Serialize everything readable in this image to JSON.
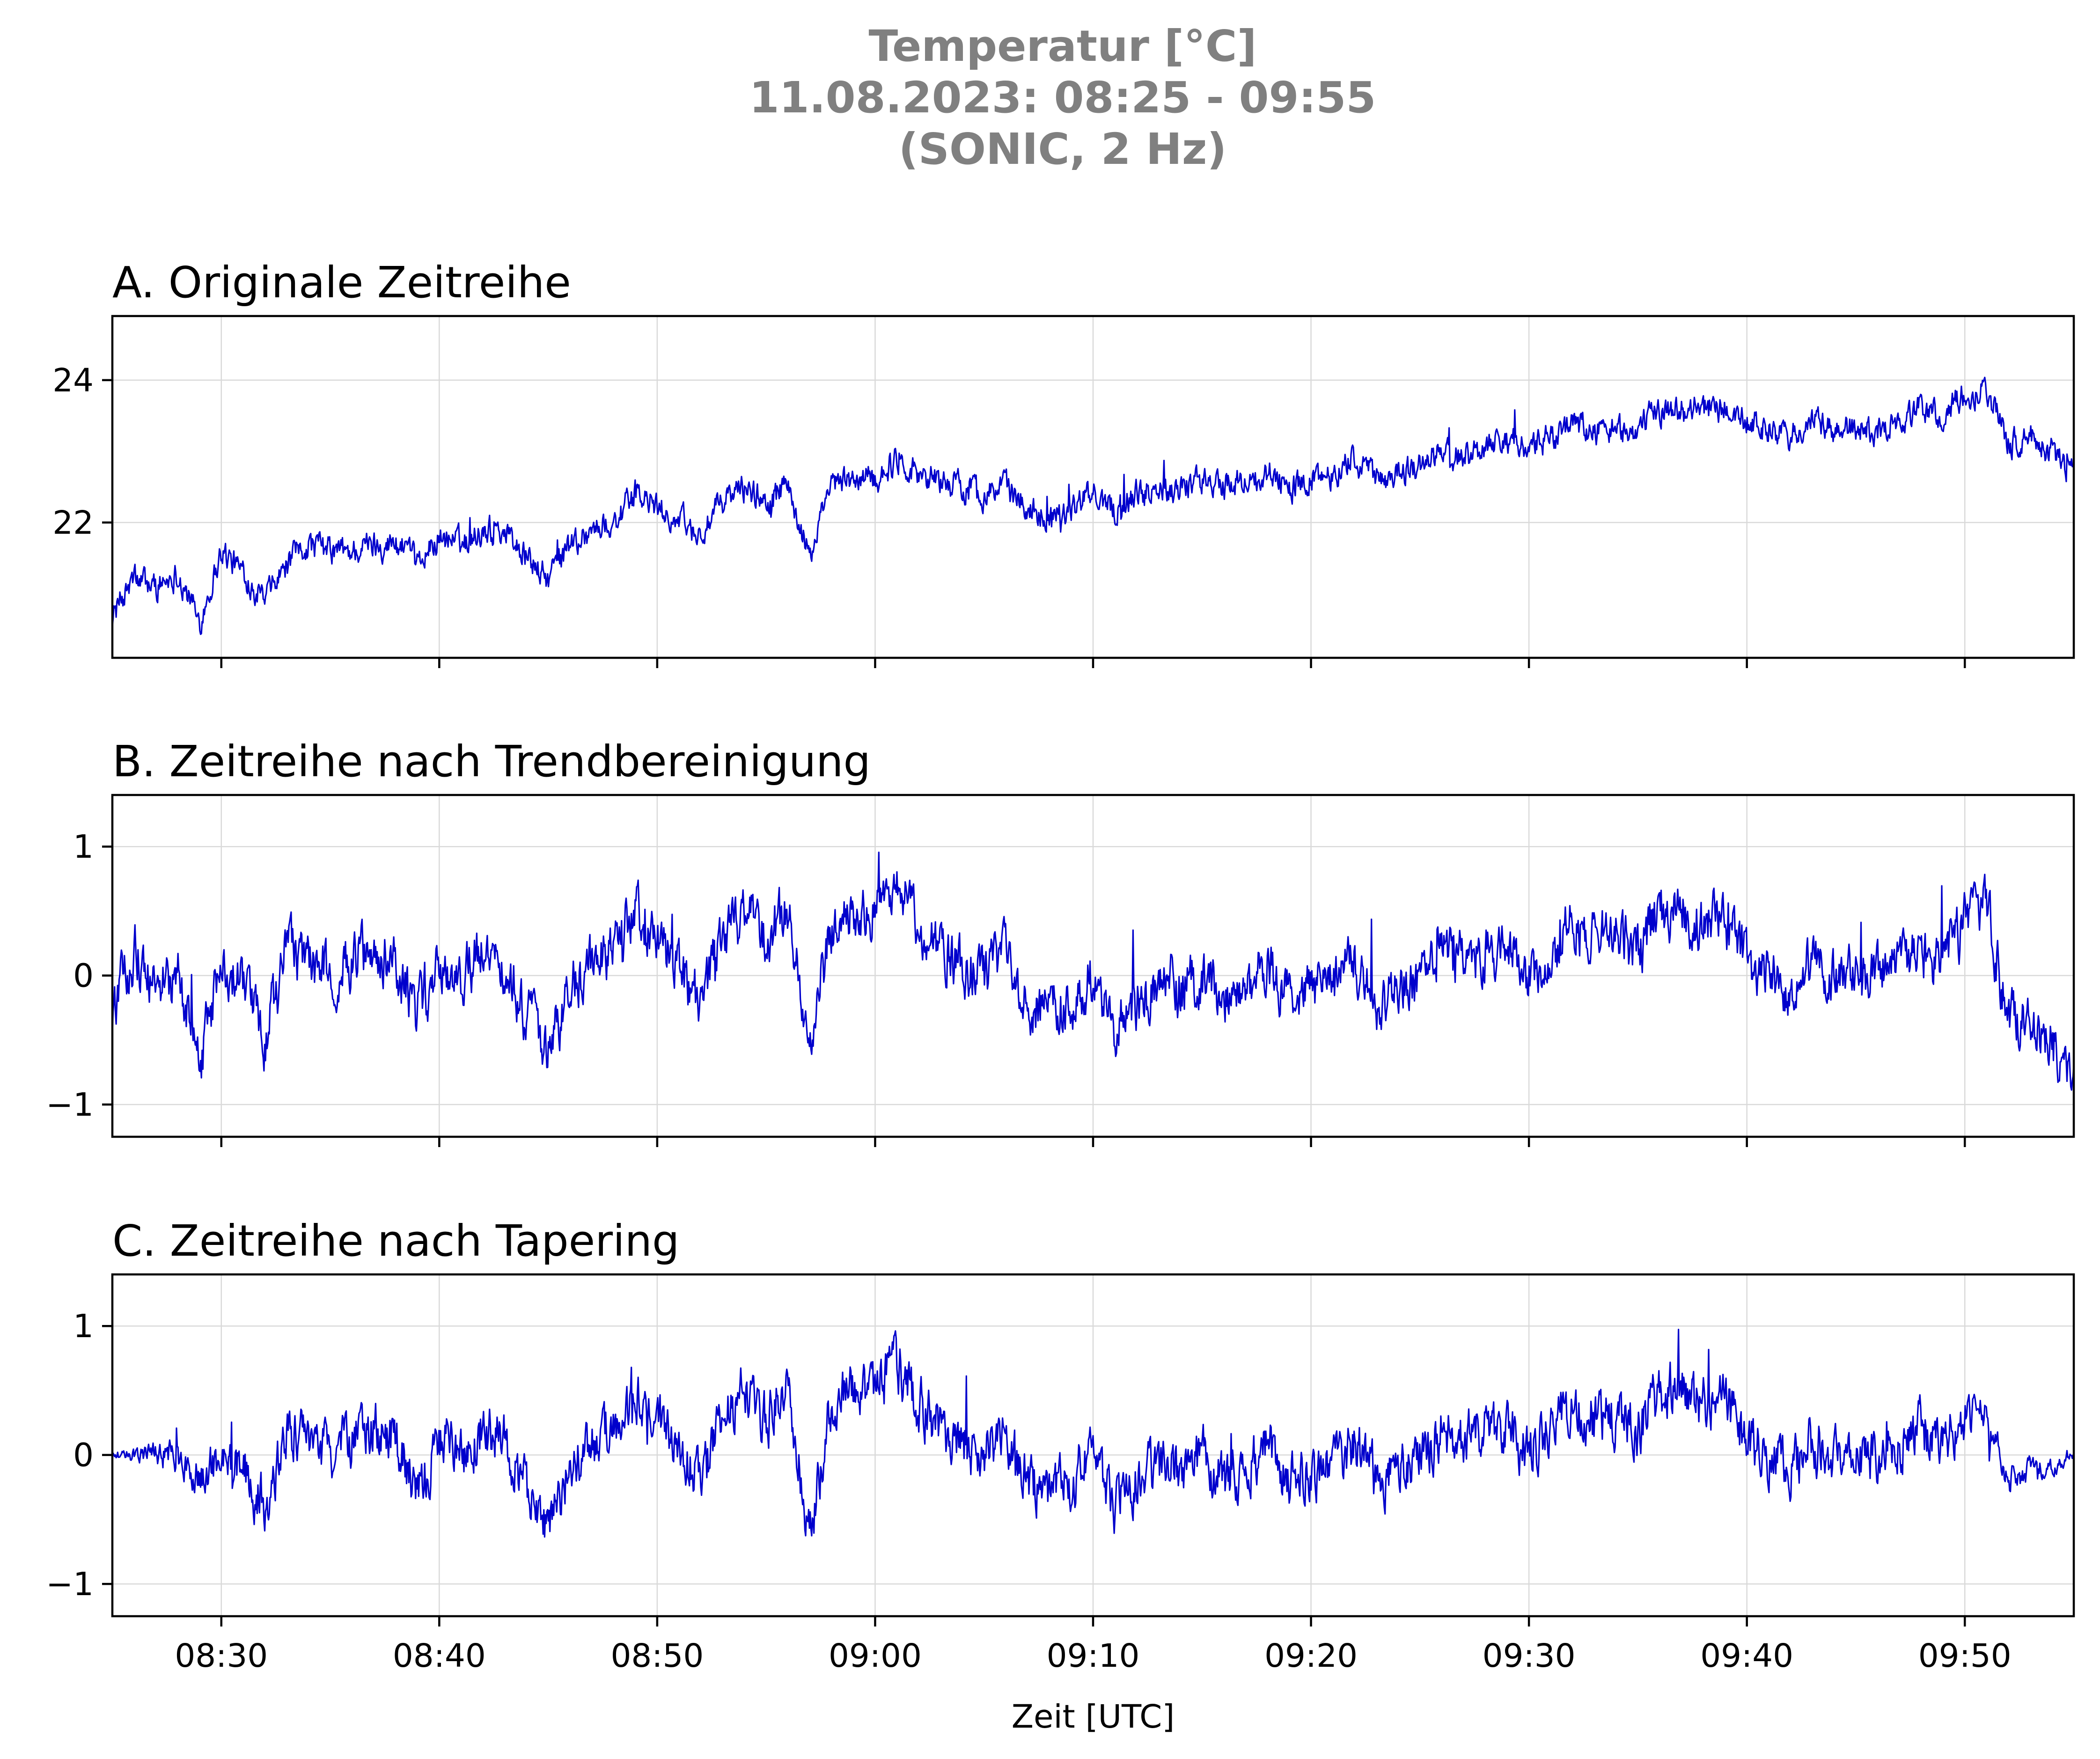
{
  "figure": {
    "title_lines": [
      "Temperatur [°C]",
      "11.08.2023:  08:25 -  09:55",
      "(SONIC, 2 Hz)"
    ],
    "xlabel": "Zeit [UTC]",
    "x_ticks": [
      "08:30",
      "08:40",
      "08:50",
      "09:00",
      "09:10",
      "09:20",
      "09:30",
      "09:40",
      "09:50"
    ],
    "line_color": "#0000cc",
    "grid_color": "#d9d9d9",
    "title_color": "#808080"
  },
  "chart_data": [
    {
      "type": "line",
      "title": "A. Originale Zeitreihe",
      "xlabel": "",
      "ylabel": "",
      "x_unit": "minutes since 08:25",
      "xlim": [
        0,
        90
      ],
      "ylim": [
        20.1,
        24.9
      ],
      "y_ticks": [
        22,
        24
      ],
      "y_tick_labels": [
        "22",
        "24"
      ],
      "grid": true,
      "series": [
        {
          "x": [
            0,
            1,
            2,
            3,
            4,
            5,
            6,
            7,
            8,
            9,
            10,
            11,
            12,
            13,
            14,
            15,
            16,
            17,
            18,
            19,
            20,
            21,
            22,
            23,
            24,
            25,
            26,
            27,
            28,
            29,
            30,
            31,
            32,
            33,
            34,
            35,
            36,
            37,
            38,
            39,
            40,
            41,
            42,
            43,
            44,
            45,
            46,
            47,
            48,
            49,
            50,
            51,
            52,
            53,
            54,
            55,
            56,
            57,
            58,
            59,
            60,
            61,
            62,
            63,
            64,
            65,
            66,
            67,
            68,
            69,
            70,
            71,
            72,
            73,
            74,
            75,
            76,
            77,
            78,
            79,
            80,
            81,
            82,
            83,
            84,
            85,
            86,
            87,
            88,
            89,
            90
          ],
          "values": [
            20.7,
            21.2,
            21.1,
            21.3,
            20.6,
            21.6,
            21.3,
            20.9,
            21.4,
            21.7,
            21.6,
            21.6,
            21.7,
            21.7,
            21.4,
            21.8,
            21.7,
            21.9,
            21.9,
            21.5,
            21.2,
            21.7,
            21.9,
            22.0,
            22.4,
            22.2,
            22.0,
            21.8,
            22.3,
            22.5,
            22.3,
            22.5,
            21.5,
            22.5,
            22.6,
            22.6,
            22.9,
            22.7,
            22.6,
            22.5,
            22.4,
            22.5,
            22.2,
            22.1,
            22.2,
            22.4,
            22.2,
            22.4,
            22.5,
            22.5,
            22.6,
            22.5,
            22.6,
            22.7,
            22.5,
            22.6,
            22.7,
            22.9,
            22.6,
            22.7,
            22.8,
            23.0,
            22.9,
            23.1,
            23.2,
            23.0,
            23.2,
            23.4,
            23.3,
            23.3,
            23.3,
            23.6,
            23.6,
            23.6,
            23.6,
            23.4,
            23.3,
            23.2,
            23.4,
            23.3,
            23.3,
            23.3,
            23.4,
            23.6,
            23.5,
            23.8,
            23.9,
            23.1,
            23.2,
            23.0,
            22.7
          ]
        }
      ]
    },
    {
      "type": "line",
      "title": "B. Zeitreihe nach Trendbereinigung",
      "xlabel": "",
      "ylabel": "",
      "x_unit": "minutes since 08:25",
      "xlim": [
        0,
        90
      ],
      "ylim": [
        -1.25,
        1.4
      ],
      "y_ticks": [
        -1,
        0,
        1
      ],
      "y_tick_labels": [
        "−1",
        "0",
        "1"
      ],
      "grid": true,
      "series": [
        {
          "x": [
            0,
            1,
            2,
            3,
            4,
            5,
            6,
            7,
            8,
            9,
            10,
            11,
            12,
            13,
            14,
            15,
            16,
            17,
            18,
            19,
            20,
            21,
            22,
            23,
            24,
            25,
            26,
            27,
            28,
            29,
            30,
            31,
            32,
            33,
            34,
            35,
            36,
            37,
            38,
            39,
            40,
            41,
            42,
            43,
            44,
            45,
            46,
            47,
            48,
            49,
            50,
            51,
            52,
            53,
            54,
            55,
            56,
            57,
            58,
            59,
            60,
            61,
            62,
            63,
            64,
            65,
            66,
            67,
            68,
            69,
            70,
            71,
            72,
            73,
            74,
            75,
            76,
            77,
            78,
            79,
            80,
            81,
            82,
            83,
            84,
            85,
            86,
            87,
            88,
            89,
            90
          ],
          "values": [
            -0.3,
            0.2,
            -0.1,
            0.0,
            -0.7,
            0.1,
            -0.1,
            -0.5,
            0.2,
            0.1,
            0.0,
            0.1,
            0.2,
            0.1,
            -0.3,
            0.1,
            0.0,
            0.2,
            0.1,
            -0.3,
            -0.6,
            -0.1,
            0.1,
            0.2,
            0.5,
            0.3,
            0.0,
            -0.2,
            0.3,
            0.5,
            0.3,
            0.5,
            -0.6,
            0.4,
            0.5,
            0.5,
            0.7,
            0.4,
            0.2,
            0.1,
            0.0,
            0.2,
            -0.2,
            -0.3,
            -0.2,
            0.0,
            -0.4,
            -0.2,
            -0.1,
            -0.1,
            0.0,
            -0.2,
            -0.1,
            0.1,
            -0.2,
            -0.1,
            -0.1,
            0.1,
            -0.2,
            -0.1,
            0.0,
            0.2,
            0.1,
            0.2,
            0.2,
            0.0,
            0.2,
            0.4,
            0.3,
            0.3,
            0.2,
            0.5,
            0.5,
            0.4,
            0.4,
            0.1,
            0.0,
            -0.1,
            0.1,
            0.0,
            0.0,
            0.0,
            0.1,
            0.2,
            0.1,
            0.4,
            0.5,
            -0.3,
            -0.4,
            -0.5,
            -0.9
          ]
        }
      ]
    },
    {
      "type": "line",
      "title": "C. Zeitreihe nach Tapering",
      "xlabel": "Zeit [UTC]",
      "ylabel": "",
      "x_unit": "minutes since 08:25",
      "xlim": [
        0,
        90
      ],
      "ylim": [
        -1.25,
        1.4
      ],
      "y_ticks": [
        -1,
        0,
        1
      ],
      "y_tick_labels": [
        "−1",
        "0",
        "1"
      ],
      "grid": true,
      "series": [
        {
          "x": [
            0,
            1,
            2,
            3,
            4,
            5,
            6,
            7,
            8,
            9,
            10,
            11,
            12,
            13,
            14,
            15,
            16,
            17,
            18,
            19,
            20,
            21,
            22,
            23,
            24,
            25,
            26,
            27,
            28,
            29,
            30,
            31,
            32,
            33,
            34,
            35,
            36,
            37,
            38,
            39,
            40,
            41,
            42,
            43,
            44,
            45,
            46,
            47,
            48,
            49,
            50,
            51,
            52,
            53,
            54,
            55,
            56,
            57,
            58,
            59,
            60,
            61,
            62,
            63,
            64,
            65,
            66,
            67,
            68,
            69,
            70,
            71,
            72,
            73,
            74,
            75,
            76,
            77,
            78,
            79,
            80,
            81,
            82,
            83,
            84,
            85,
            86,
            87,
            88,
            89,
            90
          ],
          "values": [
            0.0,
            0.0,
            0.0,
            0.0,
            -0.2,
            0.0,
            -0.1,
            -0.4,
            0.2,
            0.1,
            0.0,
            0.1,
            0.2,
            0.1,
            -0.3,
            0.1,
            0.0,
            0.2,
            0.1,
            -0.3,
            -0.6,
            -0.1,
            0.1,
            0.2,
            0.5,
            0.3,
            0.0,
            -0.2,
            0.3,
            0.5,
            0.3,
            0.5,
            -0.6,
            0.4,
            0.5,
            0.5,
            0.7,
            0.4,
            0.2,
            0.1,
            0.0,
            0.2,
            -0.2,
            -0.3,
            -0.2,
            0.0,
            -0.4,
            -0.2,
            -0.1,
            -0.1,
            0.0,
            -0.2,
            -0.1,
            0.1,
            -0.2,
            -0.1,
            -0.1,
            0.1,
            -0.2,
            -0.1,
            0.0,
            0.2,
            0.1,
            0.2,
            0.2,
            0.0,
            0.2,
            0.4,
            0.3,
            0.3,
            0.2,
            0.5,
            0.5,
            0.4,
            0.4,
            0.1,
            0.0,
            -0.1,
            0.1,
            0.0,
            0.0,
            0.0,
            0.1,
            0.2,
            0.1,
            0.3,
            0.3,
            -0.2,
            -0.1,
            -0.1,
            0.0
          ]
        }
      ]
    }
  ]
}
